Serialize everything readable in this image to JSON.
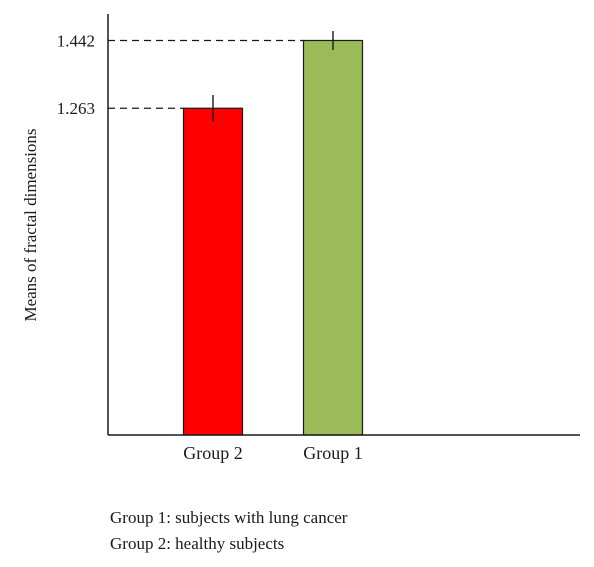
{
  "chart_data": {
    "type": "bar",
    "categories": [
      "Group 2",
      "Group 1"
    ],
    "values": [
      1.263,
      1.442
    ],
    "error": [
      0.035,
      0.025
    ],
    "colors": [
      "#ff0000",
      "#9bbb59"
    ],
    "ylabel": "Means of fractal dimensions",
    "xlabel": "",
    "yticks": [
      1.263,
      1.442
    ],
    "ytick_labels": [
      "1.263",
      "1.442"
    ],
    "ylim": [
      0.4,
      1.49
    ],
    "grid": false,
    "reference_lines": "dashed lines from y-axis to each bar top"
  },
  "captions": [
    "Group 1: subjects with lung cancer",
    "Group 2: healthy subjects"
  ]
}
